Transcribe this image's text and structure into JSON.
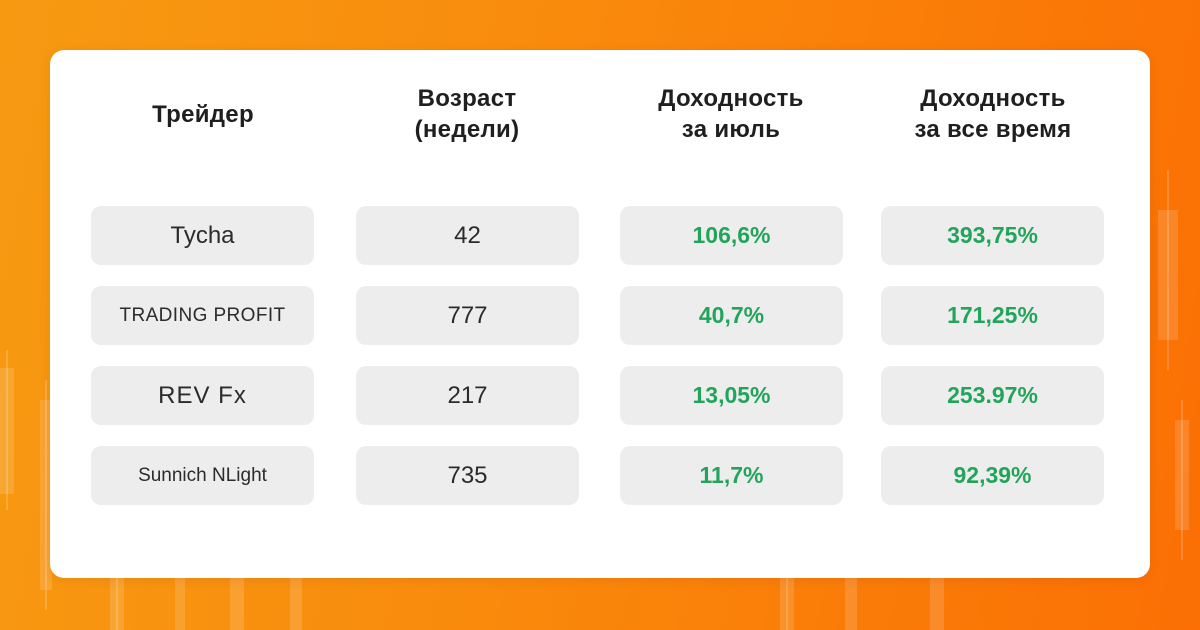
{
  "colors": {
    "background_start": "#f79a12",
    "background_end": "#fb6f04",
    "card": "#ffffff",
    "cell": "#ededed",
    "positive": "#22a55a",
    "text": "#1f1f1f"
  },
  "table": {
    "headers": {
      "trader": [
        "Трейдер"
      ],
      "age": [
        "Возраст",
        "(недели)"
      ],
      "july_return": [
        "Доходность",
        "за июль"
      ],
      "total_return": [
        "Доходность",
        "за все время"
      ]
    },
    "rows": [
      {
        "trader": "Tycha",
        "age": "42",
        "july_return": "106,6%",
        "total_return": "393,75%"
      },
      {
        "trader": "TRADING PROFIT",
        "age": "777",
        "july_return": "40,7%",
        "total_return": "171,25%"
      },
      {
        "trader": "REV Fx",
        "age": "217",
        "july_return": "13,05%",
        "total_return": "253.97%"
      },
      {
        "trader": "Sunnich NLight",
        "age": "735",
        "july_return": "11,7%",
        "total_return": "92,39%"
      }
    ]
  }
}
